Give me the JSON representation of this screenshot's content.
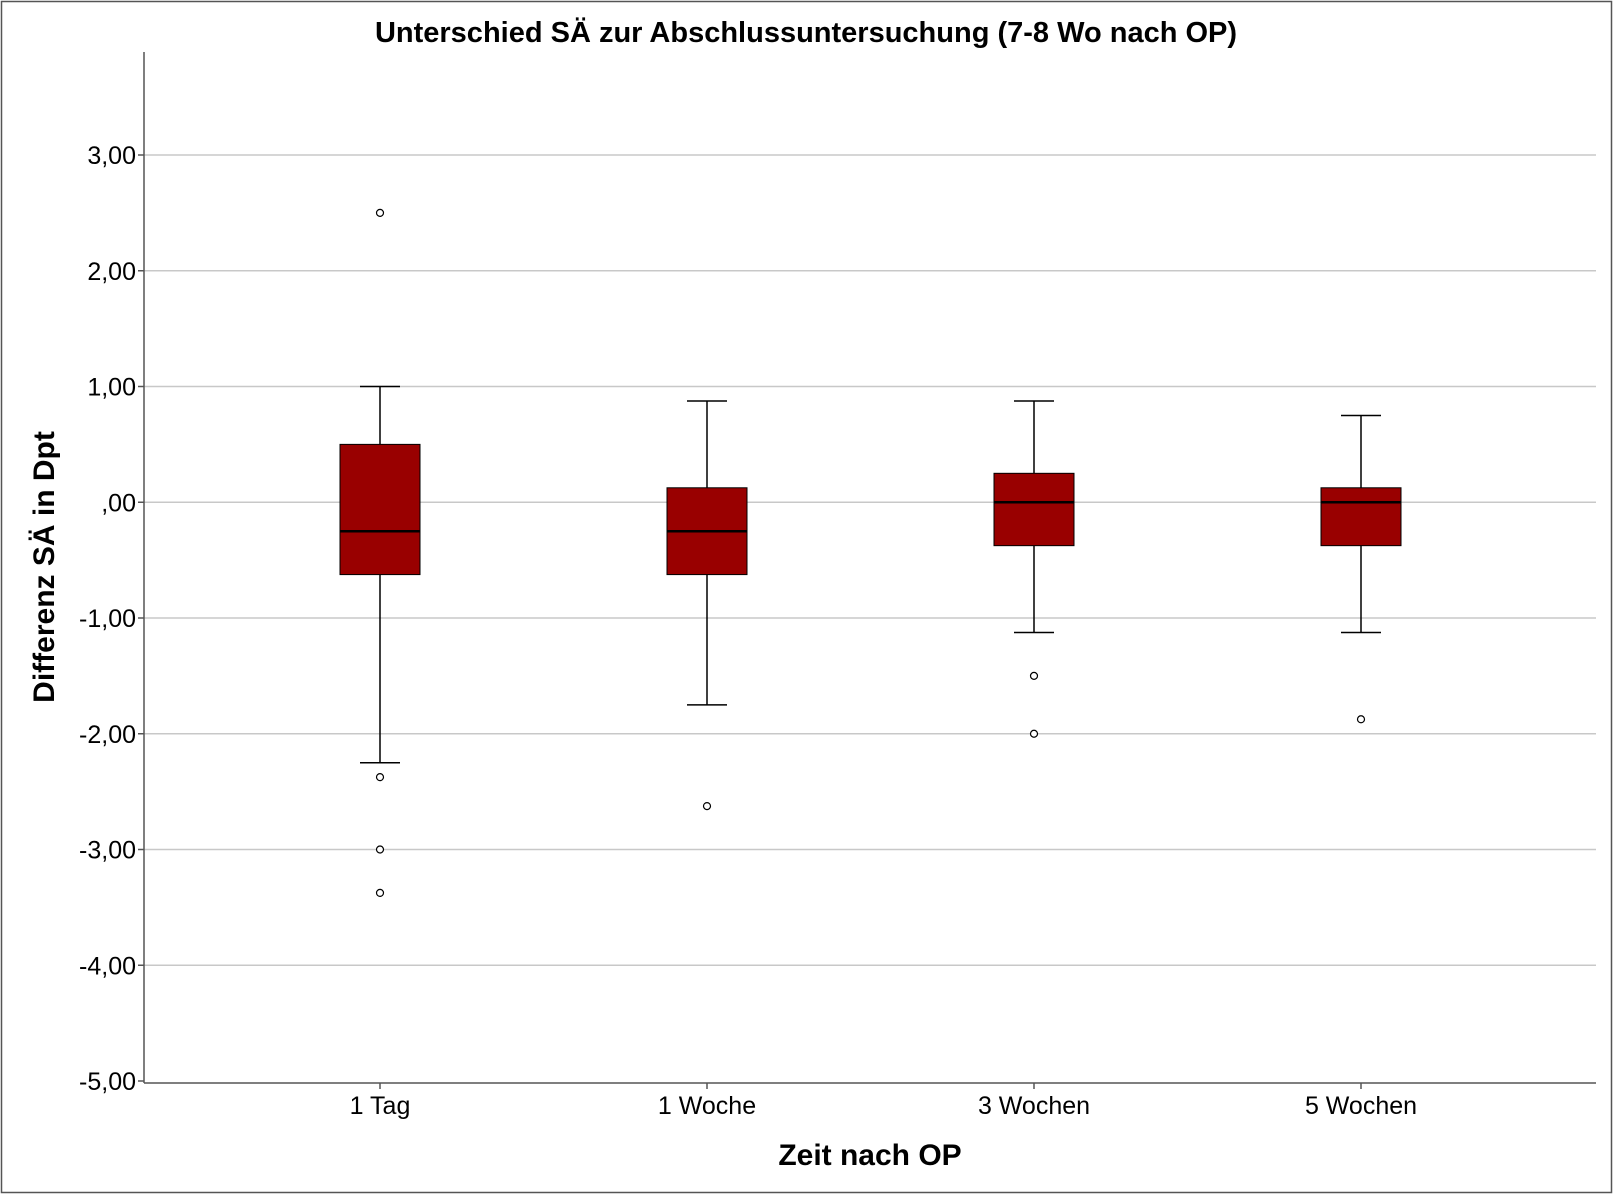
{
  "chart_data": {
    "type": "boxplot",
    "title": "Unterschied SÄ zur Abschlussuntersuchung (7-8 Wo nach OP)",
    "xlabel": "Zeit nach OP",
    "ylabel": "Differenz SÄ in Dpt",
    "ylim": [
      -5,
      4
    ],
    "yticks": [
      3,
      2,
      1,
      0,
      -1,
      -2,
      -3,
      -4,
      -5
    ],
    "ytick_labels": [
      "3,00",
      "2,00",
      "1,00",
      ",00",
      "-1,00",
      "-2,00",
      "-3,00",
      "-4,00",
      "-5,00"
    ],
    "grid": true,
    "box_color": "#990000",
    "categories": [
      "1 Tag",
      "1 Woche",
      "3 Wochen",
      "5 Wochen"
    ],
    "boxes": [
      {
        "category": "1 Tag",
        "whisker_low": -2.25,
        "q1": -0.625,
        "median": -0.25,
        "q3": 0.5,
        "whisker_high": 1.0,
        "outliers": [
          2.5,
          -2.375,
          -3.0,
          -3.375
        ]
      },
      {
        "category": "1 Woche",
        "whisker_low": -1.75,
        "q1": -0.625,
        "median": -0.25,
        "q3": 0.125,
        "whisker_high": 0.875,
        "outliers": [
          -2.625
        ]
      },
      {
        "category": "3 Wochen",
        "whisker_low": -1.125,
        "q1": -0.375,
        "median": 0.0,
        "q3": 0.25,
        "whisker_high": 0.875,
        "outliers": [
          -1.5,
          -2.0
        ]
      },
      {
        "category": "5 Wochen",
        "whisker_low": -1.125,
        "q1": -0.375,
        "median": 0.0,
        "q3": 0.125,
        "whisker_high": 0.75,
        "outliers": [
          -1.875
        ]
      }
    ]
  }
}
